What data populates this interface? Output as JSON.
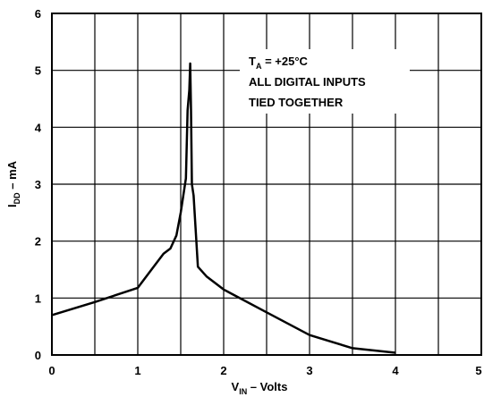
{
  "chart_data": {
    "type": "line",
    "title": "",
    "xlabel": {
      "main": "V",
      "sub": "IN",
      "rest": " – Volts"
    },
    "ylabel": {
      "main": "I",
      "sub": "DD",
      "rest": " – mA"
    },
    "xlim": [
      0,
      5
    ],
    "ylim": [
      0,
      6
    ],
    "x_ticks": [
      0,
      0.5,
      1,
      1.5,
      2,
      2.5,
      3,
      3.5,
      4,
      4.5,
      5
    ],
    "x_tick_labels": [
      {
        "value": 0,
        "label": "0"
      },
      {
        "value": 1,
        "label": "1"
      },
      {
        "value": 2,
        "label": "2"
      },
      {
        "value": 3,
        "label": "3"
      },
      {
        "value": 4,
        "label": "4"
      },
      {
        "value": 5,
        "label": "5"
      }
    ],
    "y_ticks": [
      0,
      1,
      2,
      3,
      4,
      5,
      6
    ],
    "y_tick_labels": [
      {
        "value": 0,
        "label": "0"
      },
      {
        "value": 1,
        "label": "1"
      },
      {
        "value": 2,
        "label": "2"
      },
      {
        "value": 3,
        "label": "3"
      },
      {
        "value": 4,
        "label": "4"
      },
      {
        "value": 5,
        "label": "5"
      },
      {
        "value": 6,
        "label": "6"
      }
    ],
    "grid": true,
    "annotation": {
      "line1": {
        "main": "T",
        "sub": "A",
        "rest": " = +25°C"
      },
      "line2": "ALL DIGITAL INPUTS",
      "line3": "TIED TOGETHER"
    },
    "series": [
      {
        "x": [
          0,
          0.5,
          1.0,
          1.15,
          1.3,
          1.38,
          1.45,
          1.5,
          1.53,
          1.56,
          1.58,
          1.6,
          1.61,
          1.62,
          1.63,
          1.65,
          1.7,
          1.8,
          2.0,
          2.5,
          3.0,
          3.5,
          4.0
        ],
        "y": [
          0.7,
          0.93,
          1.18,
          1.48,
          1.78,
          1.87,
          2.1,
          2.5,
          2.8,
          3.1,
          4.3,
          4.65,
          5.12,
          4.3,
          3.0,
          2.8,
          1.55,
          1.38,
          1.15,
          0.75,
          0.35,
          0.12,
          0.04
        ]
      }
    ]
  }
}
